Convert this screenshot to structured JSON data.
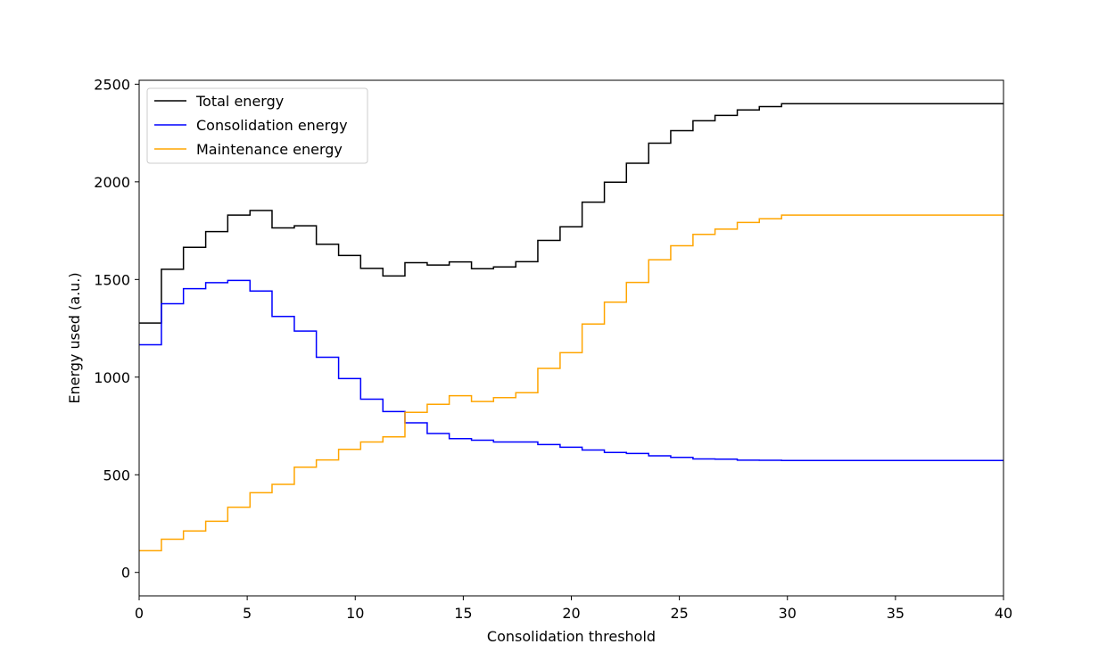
{
  "chart_data": {
    "type": "line",
    "step": "post",
    "xlabel": "Consolidation threshold",
    "ylabel": "Energy used (a.u.)",
    "xlim": [
      0,
      40
    ],
    "ylim": [
      -120,
      2520
    ],
    "xticks": [
      0,
      5,
      10,
      15,
      20,
      25,
      30,
      35,
      40
    ],
    "yticks": [
      0,
      500,
      1000,
      1500,
      2000,
      2500
    ],
    "grid": false,
    "legend": "top-left",
    "x": [
      0,
      1.03,
      2.05,
      3.08,
      4.1,
      5.13,
      6.15,
      7.18,
      8.2,
      9.23,
      10.25,
      11.28,
      12.3,
      13.33,
      14.35,
      15.38,
      16.4,
      17.43,
      18.45,
      19.48,
      20.5,
      21.53,
      22.55,
      23.58,
      24.6,
      25.63,
      26.65,
      27.68,
      28.7,
      29.73,
      40
    ],
    "series": [
      {
        "name": "Total energy",
        "color": "#000000",
        "values": [
          1277,
          1552,
          1665,
          1745,
          1830,
          1853,
          1764,
          1775,
          1680,
          1623,
          1557,
          1518,
          1586,
          1574,
          1590,
          1555,
          1564,
          1591,
          1700,
          1770,
          1896,
          1998,
          2095,
          2198,
          2262,
          2313,
          2340,
          2368,
          2385,
          2400,
          2400
        ]
      },
      {
        "name": "Consolidation energy",
        "color": "#0000ff",
        "values": [
          1166,
          1376,
          1453,
          1484,
          1495,
          1441,
          1311,
          1236,
          1102,
          993,
          887,
          824,
          766,
          711,
          685,
          677,
          668,
          668,
          655,
          641,
          627,
          614,
          609,
          597,
          589,
          581,
          580,
          575,
          574,
          573,
          573
        ]
      },
      {
        "name": "Maintenance energy",
        "color": "#ffa500",
        "values": [
          111,
          170,
          212,
          262,
          334,
          408,
          451,
          539,
          576,
          630,
          668,
          694,
          820,
          861,
          905,
          875,
          895,
          920,
          1045,
          1125,
          1272,
          1384,
          1485,
          1601,
          1673,
          1731,
          1758,
          1792,
          1811,
          1830,
          1830
        ]
      }
    ]
  }
}
